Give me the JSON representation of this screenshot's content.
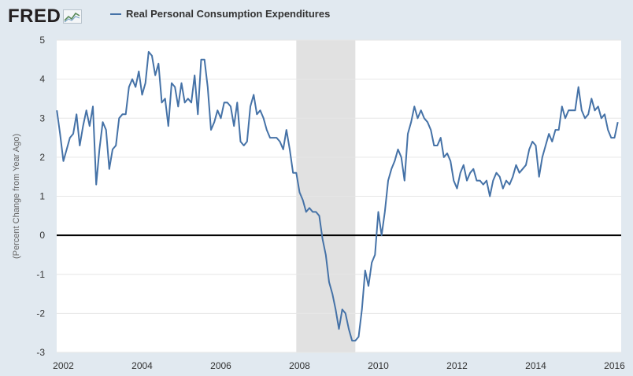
{
  "header": {
    "logo_text": "FRED",
    "logo_icon": "fred-chart-icon"
  },
  "colors": {
    "series": "#4572a7",
    "recession": "#e1e1e1",
    "background": "#e1e9f0",
    "plot_bg": "#ffffff",
    "zero_line": "#000000"
  },
  "chart_data": {
    "type": "line",
    "title": "",
    "xlabel": "",
    "ylabel": "(Percent Change from Year Ago)",
    "xlim": [
      2001.83,
      2016.17
    ],
    "ylim": [
      -3,
      5
    ],
    "x_ticks": [
      "2002",
      "2004",
      "2006",
      "2008",
      "2010",
      "2012",
      "2014",
      "2016"
    ],
    "y_ticks": [
      "5",
      "4",
      "3",
      "2",
      "1",
      "0",
      "-1",
      "-2",
      "-3"
    ],
    "grid": "horizontal",
    "legend": "top-left",
    "recession_shading": [
      {
        "start": "2007-12",
        "end": "2009-06"
      }
    ],
    "reference_line": 0,
    "series": [
      {
        "name": "Real Personal Consumption Expenditures",
        "start": "2001-11",
        "frequency": "monthly",
        "values": [
          3.2,
          2.6,
          1.9,
          2.2,
          2.5,
          2.6,
          3.1,
          2.3,
          2.8,
          3.2,
          2.8,
          3.3,
          1.3,
          2.2,
          2.9,
          2.7,
          1.7,
          2.2,
          2.3,
          3.0,
          3.1,
          3.1,
          3.8,
          4.0,
          3.8,
          4.2,
          3.6,
          3.9,
          4.7,
          4.6,
          4.1,
          4.4,
          3.4,
          3.5,
          2.8,
          3.9,
          3.8,
          3.3,
          3.9,
          3.4,
          3.5,
          3.4,
          4.1,
          3.1,
          4.5,
          4.5,
          3.8,
          2.7,
          2.9,
          3.2,
          3.0,
          3.4,
          3.4,
          3.3,
          2.8,
          3.4,
          2.4,
          2.3,
          2.4,
          3.3,
          3.6,
          3.1,
          3.2,
          3.0,
          2.7,
          2.5,
          2.5,
          2.5,
          2.4,
          2.2,
          2.7,
          2.2,
          1.6,
          1.6,
          1.1,
          0.9,
          0.6,
          0.7,
          0.6,
          0.6,
          0.5,
          -0.1,
          -0.5,
          -1.2,
          -1.5,
          -1.9,
          -2.4,
          -1.9,
          -2.0,
          -2.4,
          -2.7,
          -2.7,
          -2.6,
          -1.9,
          -0.9,
          -1.3,
          -0.7,
          -0.5,
          0.6,
          0.0,
          0.6,
          1.4,
          1.7,
          1.9,
          2.2,
          2.0,
          1.4,
          2.6,
          2.9,
          3.3,
          3.0,
          3.2,
          3.0,
          2.9,
          2.7,
          2.3,
          2.3,
          2.5,
          2.0,
          2.1,
          1.9,
          1.4,
          1.2,
          1.6,
          1.8,
          1.4,
          1.6,
          1.7,
          1.4,
          1.4,
          1.3,
          1.4,
          1.0,
          1.4,
          1.6,
          1.5,
          1.2,
          1.4,
          1.3,
          1.5,
          1.8,
          1.6,
          1.7,
          1.8,
          2.2,
          2.4,
          2.3,
          1.5,
          2.0,
          2.3,
          2.6,
          2.4,
          2.7,
          2.7,
          3.3,
          3.0,
          3.2,
          3.2,
          3.2,
          3.8,
          3.2,
          3.0,
          3.1,
          3.5,
          3.2,
          3.3,
          3.0,
          3.1,
          2.7,
          2.5,
          2.5,
          2.9
        ]
      }
    ]
  }
}
